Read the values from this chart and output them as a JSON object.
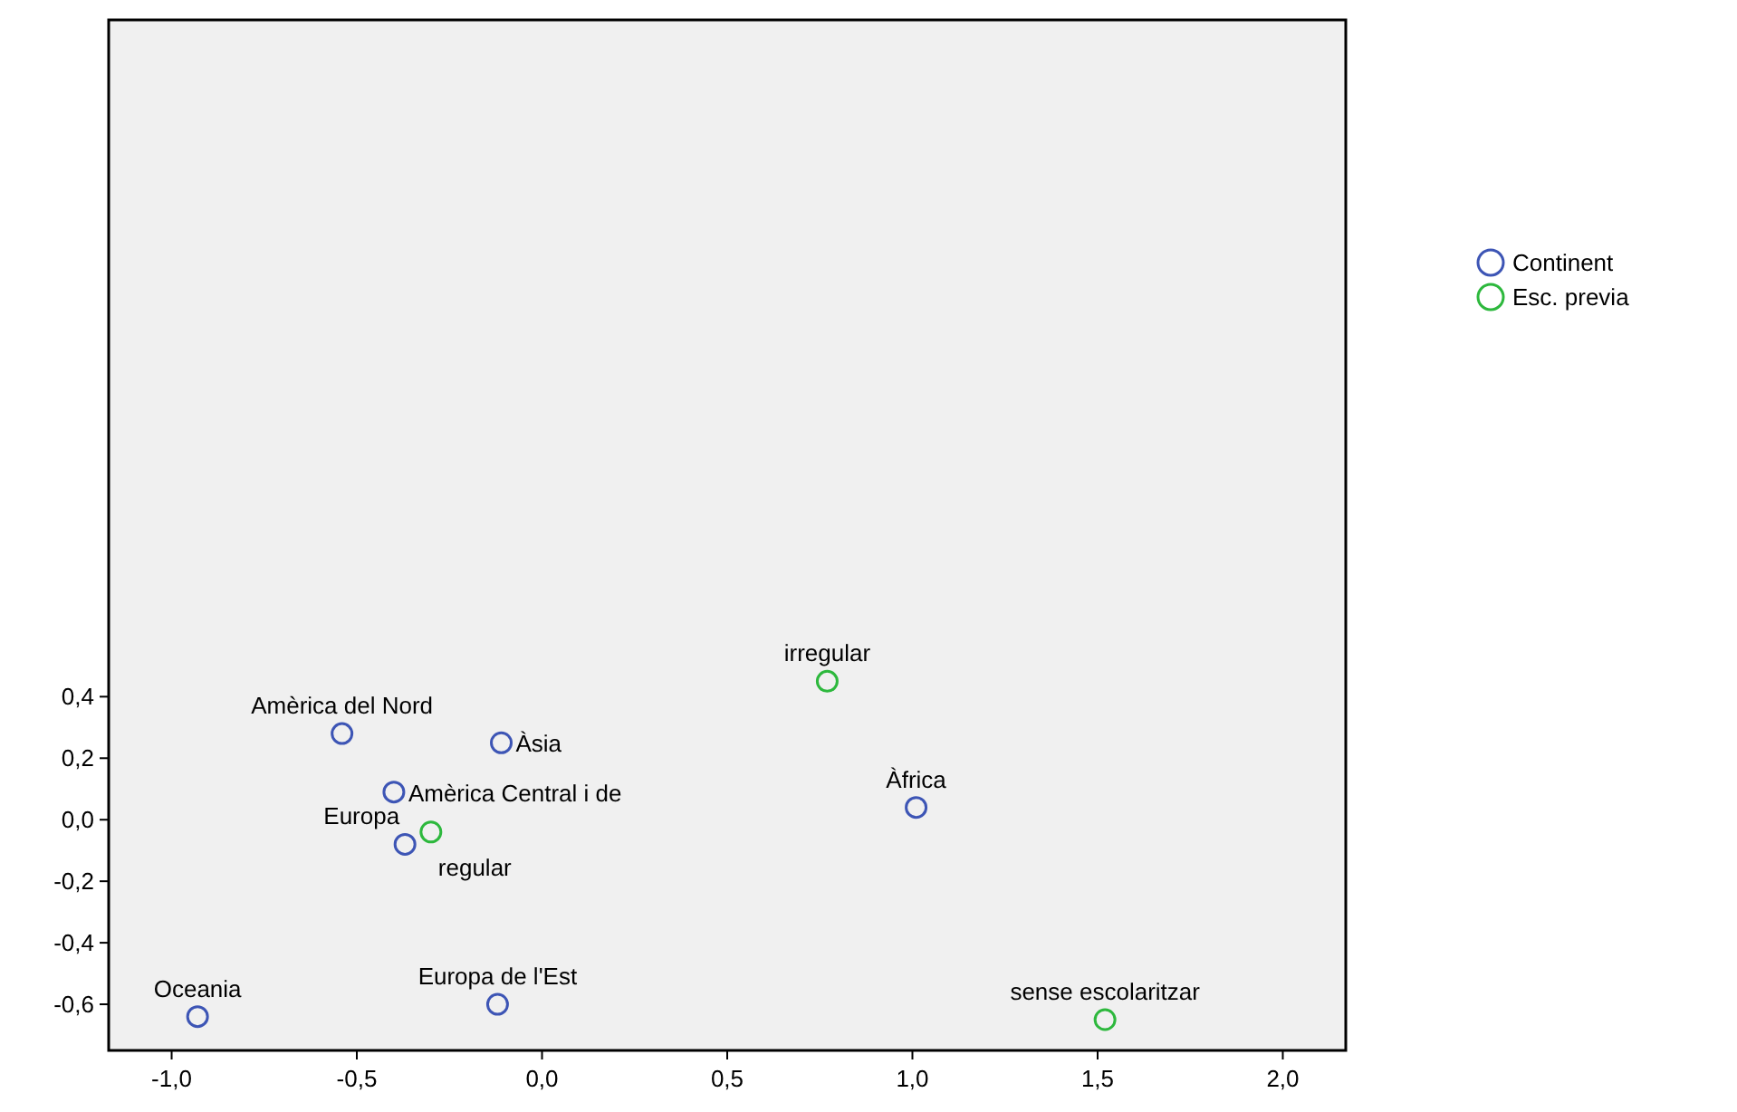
{
  "chart_data": {
    "type": "scatter",
    "marker": "circle",
    "legend": "right",
    "grid": false,
    "xlim": [
      -1.17,
      2.17
    ],
    "ylim": [
      -0.75,
      2.6
    ],
    "xticks": [
      {
        "value": -1,
        "label": "-1,0"
      },
      {
        "value": -0.5,
        "label": "-0,5"
      },
      {
        "value": 0,
        "label": "0,0"
      },
      {
        "value": 0.5,
        "label": "0,5"
      },
      {
        "value": 1,
        "label": "1,0"
      },
      {
        "value": 1.5,
        "label": "1,5"
      },
      {
        "value": 2,
        "label": "2,0"
      }
    ],
    "yticks": [
      {
        "value": -0.6,
        "label": "-0,6"
      },
      {
        "value": -0.4,
        "label": "-0,4"
      },
      {
        "value": -0.2,
        "label": "-0,2"
      },
      {
        "value": 0,
        "label": "0,0"
      },
      {
        "value": 0.2,
        "label": "0,2"
      },
      {
        "value": 0.4,
        "label": "0,4"
      }
    ],
    "series": [
      {
        "name": "Continent",
        "color": "#3d55b5",
        "x": [
          -0.54,
          -0.11,
          -0.4,
          -0.37,
          -0.93,
          -0.12,
          1.01
        ],
        "values": [
          0.28,
          0.25,
          0.09,
          -0.08,
          -0.64,
          -0.6,
          0.04
        ]
      },
      {
        "name": "Esc. previa",
        "color": "#2db83d",
        "x": [
          -0.3,
          0.77,
          1.52
        ],
        "values": [
          -0.04,
          0.45,
          -0.65
        ]
      }
    ],
    "annotations": [
      {
        "text": "Amèrica del Nord",
        "x": -0.54,
        "y": 0.28
      },
      {
        "text": "Àsia",
        "x": -0.11,
        "y": 0.25
      },
      {
        "text": "Amèrica Central i de",
        "x": -0.4,
        "y": 0.09
      },
      {
        "text": "Europa",
        "x": -0.37,
        "y": -0.08
      },
      {
        "text": "Oceania",
        "x": -0.93,
        "y": -0.64
      },
      {
        "text": "Europa de l'Est",
        "x": -0.12,
        "y": -0.6
      },
      {
        "text": "Àfrica",
        "x": 1.01,
        "y": 0.04
      },
      {
        "text": "regular",
        "x": -0.3,
        "y": -0.04
      },
      {
        "text": "irregular",
        "x": 0.77,
        "y": 0.45
      },
      {
        "text": "sense escolaritzar",
        "x": 1.52,
        "y": -0.65
      }
    ]
  }
}
